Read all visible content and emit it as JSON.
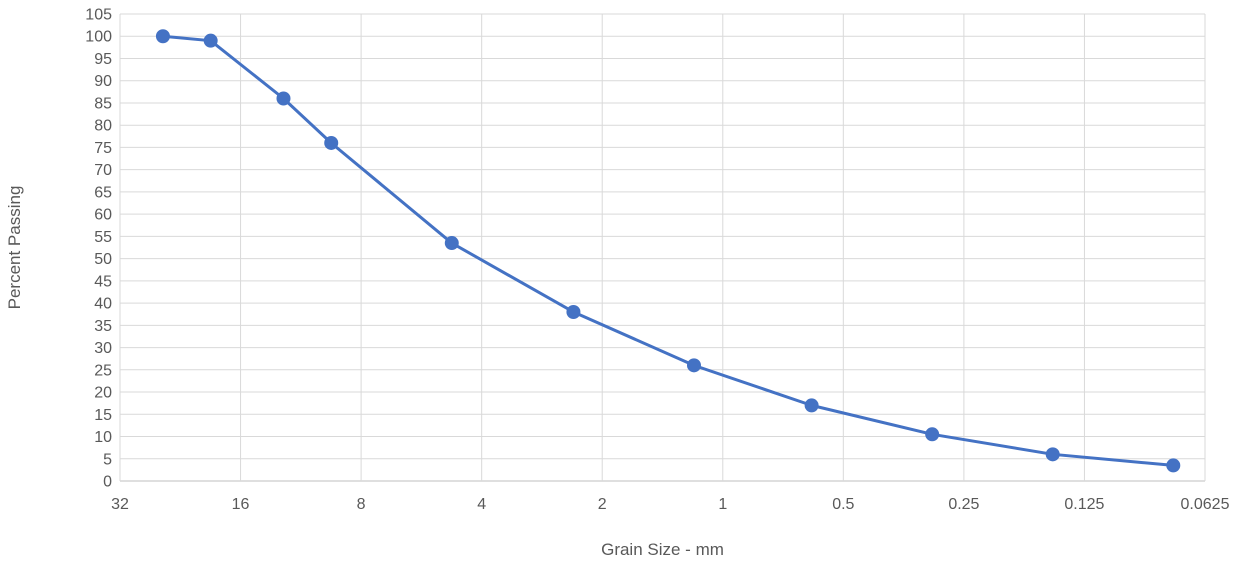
{
  "chart_data": {
    "type": "scatter",
    "title": "",
    "xlabel": "Grain Size - mm",
    "ylabel": "Percent Passing",
    "x_scale": "log2-reversed",
    "xlim": [
      32,
      0.0625
    ],
    "ylim": [
      0,
      105
    ],
    "x_ticks": [
      32,
      16,
      8,
      4,
      2,
      1,
      0.5,
      0.25,
      0.125,
      0.0625
    ],
    "x_tick_labels": [
      "32",
      "16",
      "8",
      "4",
      "2",
      "1",
      "0.5",
      "0.25",
      "0.125",
      "0.0625"
    ],
    "y_ticks": [
      0,
      5,
      10,
      15,
      20,
      25,
      30,
      35,
      40,
      45,
      50,
      55,
      60,
      65,
      70,
      75,
      80,
      85,
      90,
      95,
      100,
      105
    ],
    "grid": true,
    "series_color": "#4472C4",
    "series": [
      {
        "name": "",
        "x": [
          25,
          19,
          12.5,
          9.5,
          4.75,
          2.36,
          1.18,
          0.6,
          0.3,
          0.15,
          0.075
        ],
        "y": [
          100,
          99,
          86,
          76,
          53.5,
          38,
          26,
          17,
          10.5,
          6,
          3.5
        ]
      }
    ]
  }
}
